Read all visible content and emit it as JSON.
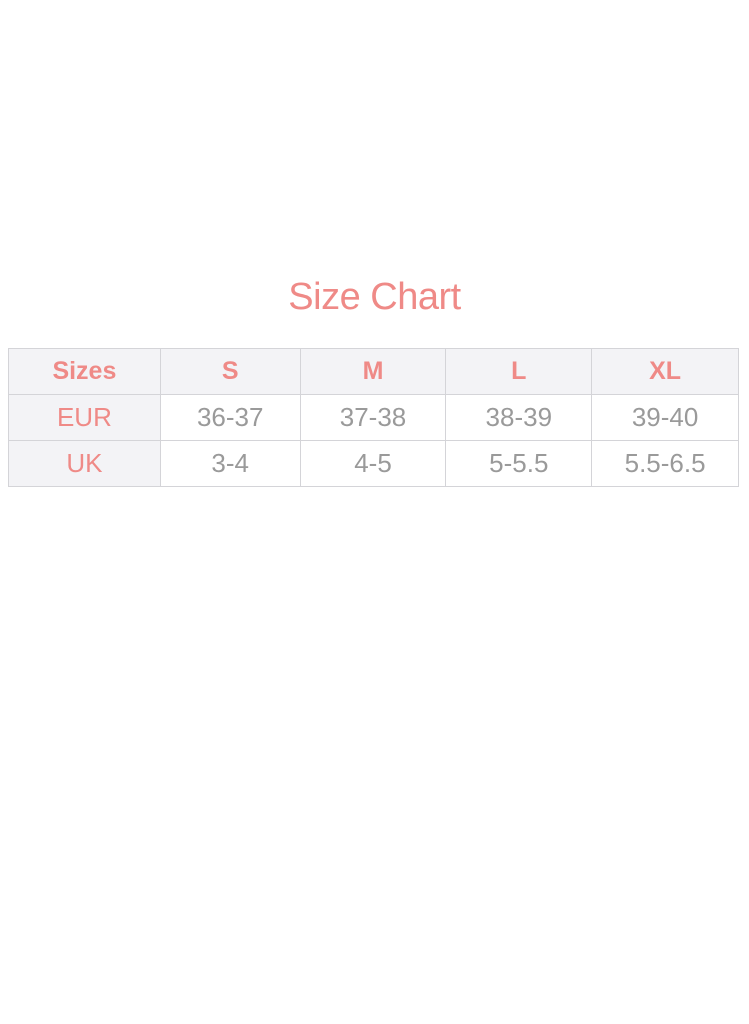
{
  "title": "Size Chart",
  "table": {
    "headers": [
      "Sizes",
      "S",
      "M",
      "L",
      "XL"
    ],
    "rows": [
      {
        "label": "EUR",
        "values": [
          "36-37",
          "37-38",
          "38-39",
          "39-40"
        ]
      },
      {
        "label": "UK",
        "values": [
          "3-4",
          "4-5",
          "5-5.5",
          "5.5-6.5"
        ]
      }
    ]
  },
  "colors": {
    "accent": "#ef8a87",
    "text": "#9a9a9a",
    "header_bg": "#f3f3f6"
  }
}
